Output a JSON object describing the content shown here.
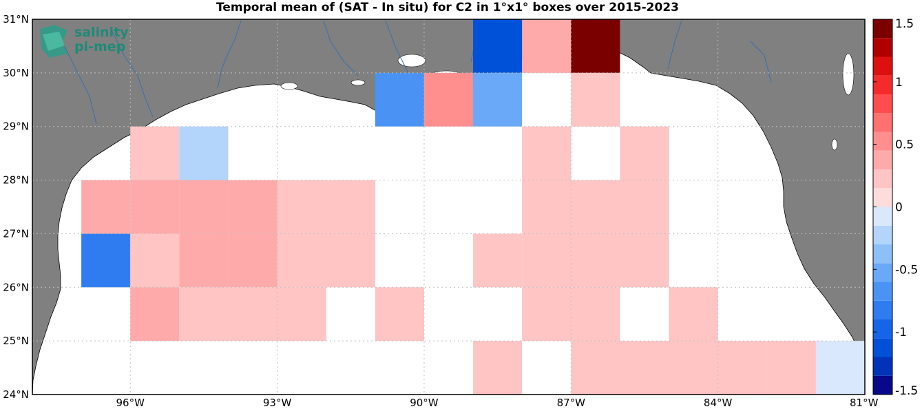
{
  "title": "Temporal mean of (SAT - In situ) for C2 in 1°x1° boxes over 2015-2023",
  "logo": {
    "line1": "salinity",
    "line2": "pi-mep"
  },
  "chart_data": {
    "type": "heatmap",
    "title": "Temporal mean of (SAT - In situ) for C2 in 1°x1° boxes over 2015-2023",
    "xlim": [
      -98,
      -81
    ],
    "ylim": [
      24,
      31
    ],
    "lat_ticks": [
      {
        "value": 31,
        "label": "31°N"
      },
      {
        "value": 30,
        "label": "30°N"
      },
      {
        "value": 29,
        "label": "29°N"
      },
      {
        "value": 28,
        "label": "28°N"
      },
      {
        "value": 27,
        "label": "27°N"
      },
      {
        "value": 26,
        "label": "26°N"
      },
      {
        "value": 25,
        "label": "25°N"
      },
      {
        "value": 24,
        "label": "24°N"
      }
    ],
    "lon_ticks": [
      {
        "value": -96,
        "label": "96°W"
      },
      {
        "value": -93,
        "label": "93°W"
      },
      {
        "value": -90,
        "label": "90°W"
      },
      {
        "value": -87,
        "label": "87°W"
      },
      {
        "value": -84,
        "label": "84°W"
      },
      {
        "value": -81,
        "label": "81°W"
      }
    ],
    "colorbar": {
      "range": [
        -1.5,
        1.5
      ],
      "ticks": [
        {
          "value": 1.5,
          "label": "1.5"
        },
        {
          "value": 1,
          "label": "1"
        },
        {
          "value": 0.5,
          "label": "0.5"
        },
        {
          "value": 0,
          "label": "0"
        },
        {
          "value": -0.5,
          "label": "-0.5"
        },
        {
          "value": -1,
          "label": "-1"
        },
        {
          "value": -1.5,
          "label": "-1.5"
        }
      ]
    },
    "cells": [
      {
        "lon": -95.5,
        "lat": 28.5,
        "value": 0.15
      },
      {
        "lon": -94.5,
        "lat": 28.5,
        "value": -0.25
      },
      {
        "lon": -96.5,
        "lat": 27.5,
        "value": 0.3
      },
      {
        "lon": -95.5,
        "lat": 27.5,
        "value": 0.3
      },
      {
        "lon": -94.5,
        "lat": 27.5,
        "value": 0.3
      },
      {
        "lon": -93.5,
        "lat": 27.5,
        "value": 0.3
      },
      {
        "lon": -92.5,
        "lat": 27.5,
        "value": 0.15
      },
      {
        "lon": -91.5,
        "lat": 27.5,
        "value": 0.15
      },
      {
        "lon": -96.5,
        "lat": 26.5,
        "value": -0.8
      },
      {
        "lon": -95.5,
        "lat": 26.5,
        "value": 0.15
      },
      {
        "lon": -94.5,
        "lat": 26.5,
        "value": 0.35
      },
      {
        "lon": -93.5,
        "lat": 26.5,
        "value": 0.35
      },
      {
        "lon": -92.5,
        "lat": 26.5,
        "value": 0.15
      },
      {
        "lon": -91.5,
        "lat": 26.5,
        "value": 0.15
      },
      {
        "lon": -95.5,
        "lat": 25.5,
        "value": 0.35
      },
      {
        "lon": -94.5,
        "lat": 25.5,
        "value": 0.15
      },
      {
        "lon": -93.5,
        "lat": 25.5,
        "value": 0.15
      },
      {
        "lon": -92.5,
        "lat": 25.5,
        "value": 0.15
      },
      {
        "lon": -90.5,
        "lat": 25.5,
        "value": 0.15
      },
      {
        "lon": -90.5,
        "lat": 29.5,
        "value": -0.65
      },
      {
        "lon": -89.5,
        "lat": 29.5,
        "value": 0.45
      },
      {
        "lon": -88.5,
        "lat": 30.5,
        "value": -1.15
      },
      {
        "lon": -88.5,
        "lat": 29.5,
        "value": -0.5
      },
      {
        "lon": -87.5,
        "lat": 30.5,
        "value": 0.3
      },
      {
        "lon": -86.5,
        "lat": 30.5,
        "value": 1.45
      },
      {
        "lon": -86.5,
        "lat": 29.5,
        "value": 0.15
      },
      {
        "lon": -87.5,
        "lat": 28.5,
        "value": 0.15
      },
      {
        "lon": -85.5,
        "lat": 28.5,
        "value": 0.15
      },
      {
        "lon": -87.5,
        "lat": 27.5,
        "value": 0.15
      },
      {
        "lon": -86.5,
        "lat": 27.5,
        "value": 0.15
      },
      {
        "lon": -85.5,
        "lat": 27.5,
        "value": 0.15
      },
      {
        "lon": -88.5,
        "lat": 26.5,
        "value": 0.15
      },
      {
        "lon": -87.5,
        "lat": 26.5,
        "value": 0.15
      },
      {
        "lon": -86.5,
        "lat": 26.5,
        "value": 0.15
      },
      {
        "lon": -85.5,
        "lat": 26.5,
        "value": 0.15
      },
      {
        "lon": -87.5,
        "lat": 25.5,
        "value": 0.15
      },
      {
        "lon": -86.5,
        "lat": 25.5,
        "value": 0.15
      },
      {
        "lon": -84.5,
        "lat": 25.5,
        "value": 0.15
      },
      {
        "lon": -88.5,
        "lat": 24.5,
        "value": 0.15
      },
      {
        "lon": -86.5,
        "lat": 24.5,
        "value": 0.15
      },
      {
        "lon": -85.5,
        "lat": 24.5,
        "value": 0.15
      },
      {
        "lon": -84.5,
        "lat": 24.5,
        "value": 0.15
      },
      {
        "lon": -83.5,
        "lat": 24.5,
        "value": 0.15
      },
      {
        "lon": -82.5,
        "lat": 24.5,
        "value": 0.15
      },
      {
        "lon": -81.5,
        "lat": 24.5,
        "value": -0.1
      }
    ],
    "colors": {
      "land": "#808080",
      "ocean": "#ffffff",
      "rivers": "#3a6fb0",
      "grid": "#bfbfbf"
    }
  }
}
